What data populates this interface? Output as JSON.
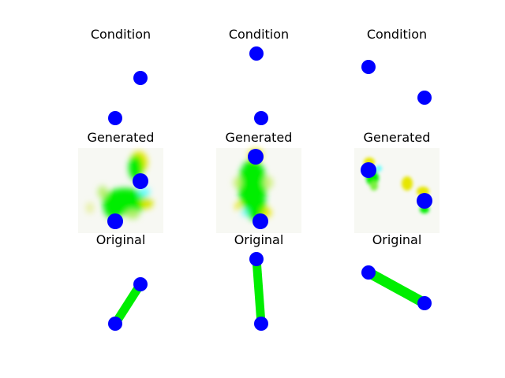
{
  "colors": {
    "joint": "#0000ff",
    "limb": "#00ee00",
    "artifact_yellow": "#e6e600",
    "artifact_cyan": "#66ffff",
    "generated_background": "#f7f8f3"
  },
  "columns": [
    {
      "condition_title": "Condition",
      "generated_title": "Generated",
      "original_title": "Original"
    },
    {
      "condition_title": "Condition",
      "generated_title": "Generated",
      "original_title": "Original"
    },
    {
      "condition_title": "Condition",
      "generated_title": "Generated",
      "original_title": "Original"
    }
  ]
}
